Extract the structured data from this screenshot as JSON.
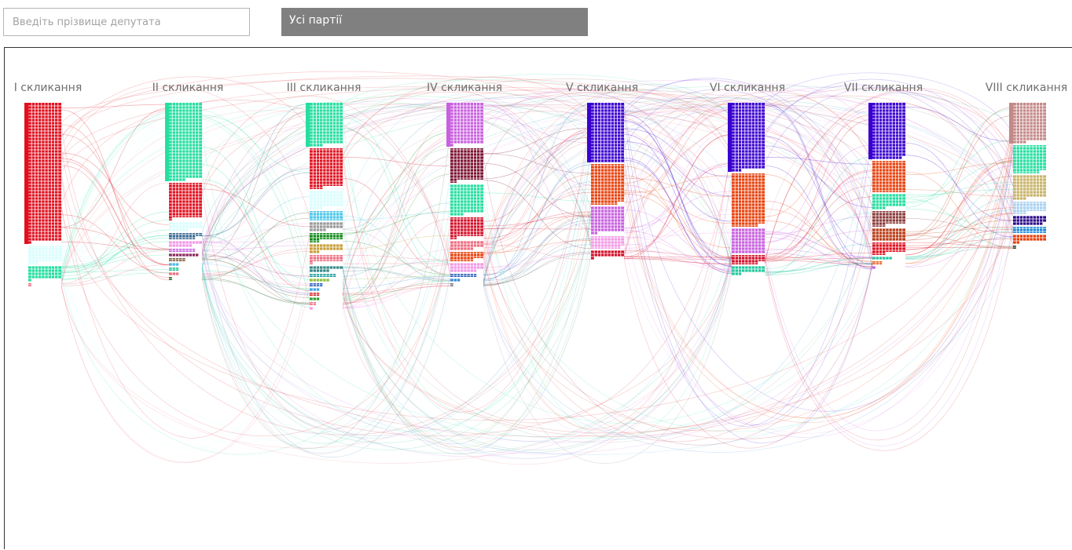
{
  "search": {
    "placeholder": "Введіть прізвище депутата",
    "value": ""
  },
  "party_filter": {
    "selected_label": "Усі партії"
  },
  "chart_data": {
    "type": "flow-waffle",
    "columns": [
      {
        "label": "I скликання",
        "blocks": [
          {
            "color": "#e0101f",
            "count": 441
          },
          {
            "color": "#d8fdfe",
            "count": 53
          },
          {
            "color": "#25dea0",
            "count": 41
          },
          {
            "color": "#ee6e80",
            "count": 1
          }
        ]
      },
      {
        "label": "II скликання",
        "blocks": [
          {
            "color": "#25dea0",
            "count": 245
          },
          {
            "color": "#e0101f",
            "count": 111
          },
          {
            "color": "#d8fdfe",
            "count": 26
          },
          {
            "color": "#3a6a93",
            "count": 18
          },
          {
            "color": "#f29ae6",
            "count": 17
          },
          {
            "color": "#c860df",
            "count": 8
          },
          {
            "color": "#8a2a5f",
            "count": 9
          },
          {
            "color": "#7a5a3b",
            "count": 5
          },
          {
            "color": "#4ab5e8",
            "count": 3
          },
          {
            "color": "#20c090",
            "count": 3
          },
          {
            "color": "#ee6e80",
            "count": 3
          },
          {
            "color": "#2d6b2d",
            "count": 1
          }
        ]
      },
      {
        "label": "III скликання",
        "blocks": [
          {
            "color": "#25dea0",
            "count": 134
          },
          {
            "color": "#e0101f",
            "count": 124
          },
          {
            "color": "#d8fdfe",
            "count": 54
          },
          {
            "color": "#4ac6e8",
            "count": 30
          },
          {
            "color": "#9a9a9a",
            "count": 25
          },
          {
            "color": "#0f8a18",
            "count": 23
          },
          {
            "color": "#c8a03a",
            "count": 23
          },
          {
            "color": "#ee6e80",
            "count": 21
          },
          {
            "color": "#3a8a8a",
            "count": 16
          },
          {
            "color": "#1e9e9e",
            "count": 8
          },
          {
            "color": "#8fbf3a",
            "count": 6
          },
          {
            "color": "#2a5fb8",
            "count": 4
          },
          {
            "color": "#3aa5e8",
            "count": 3
          },
          {
            "color": "#d42a2a",
            "count": 3
          },
          {
            "color": "#30a030",
            "count": 3
          },
          {
            "color": "#ee6e80",
            "count": 2
          },
          {
            "color": "#f29ae6",
            "count": 1
          }
        ]
      },
      {
        "label": "IV скликання",
        "blocks": [
          {
            "color": "#c860df",
            "count": 131
          },
          {
            "color": "#7a1130",
            "count": 102
          },
          {
            "color": "#25dea0",
            "count": 94
          },
          {
            "color": "#d4102a",
            "count": 62
          },
          {
            "color": "#ee6e80",
            "count": 27
          },
          {
            "color": "#e8420e",
            "count": 27
          },
          {
            "color": "#f29ae6",
            "count": 28
          },
          {
            "color": "#2a5fb8",
            "count": 8
          },
          {
            "color": "#3a8ad8",
            "count": 3
          },
          {
            "color": "#7a7a7a",
            "count": 1
          }
        ]
      },
      {
        "label": "V скликання",
        "blocks": [
          {
            "color": "#3a00d0",
            "count": 190
          },
          {
            "color": "#e8420e",
            "count": 128
          },
          {
            "color": "#c860df",
            "count": 82
          },
          {
            "color": "#f29ae6",
            "count": 39
          },
          {
            "color": "#d4102a",
            "count": 21
          }
        ]
      },
      {
        "label": "VI скликання",
        "blocks": [
          {
            "color": "#3a00d0",
            "count": 213
          },
          {
            "color": "#e8420e",
            "count": 168
          },
          {
            "color": "#c860df",
            "count": 80
          },
          {
            "color": "#d4102a",
            "count": 28
          },
          {
            "color": "#25c8a0",
            "count": 23
          }
        ]
      },
      {
        "label": "VII скликання",
        "blocks": [
          {
            "color": "#3a00d0",
            "count": 179
          },
          {
            "color": "#e8420e",
            "count": 100
          },
          {
            "color": "#25dea0",
            "count": 44
          },
          {
            "color": "#8a3a3a",
            "count": 44
          },
          {
            "color": "#b83a14",
            "count": 40
          },
          {
            "color": "#e0101f",
            "count": 34
          },
          {
            "color": "#25c8a0",
            "count": 6
          },
          {
            "color": "#e85a0e",
            "count": 3
          },
          {
            "color": "#c860df",
            "count": 1
          }
        ]
      },
      {
        "label": "VIII скликання",
        "blocks": [
          {
            "color": "#c48888",
            "count": 124
          },
          {
            "color": "#25dea0",
            "count": 88
          },
          {
            "color": "#c8b36a",
            "count": 74
          },
          {
            "color": "#a8d0f0",
            "count": 34
          },
          {
            "color": "#2a0a8a",
            "count": 29
          },
          {
            "color": "#1e8ad8",
            "count": 20
          },
          {
            "color": "#e8420e",
            "count": 22
          },
          {
            "color": "#1a3a2a",
            "count": 1
          }
        ]
      }
    ]
  }
}
